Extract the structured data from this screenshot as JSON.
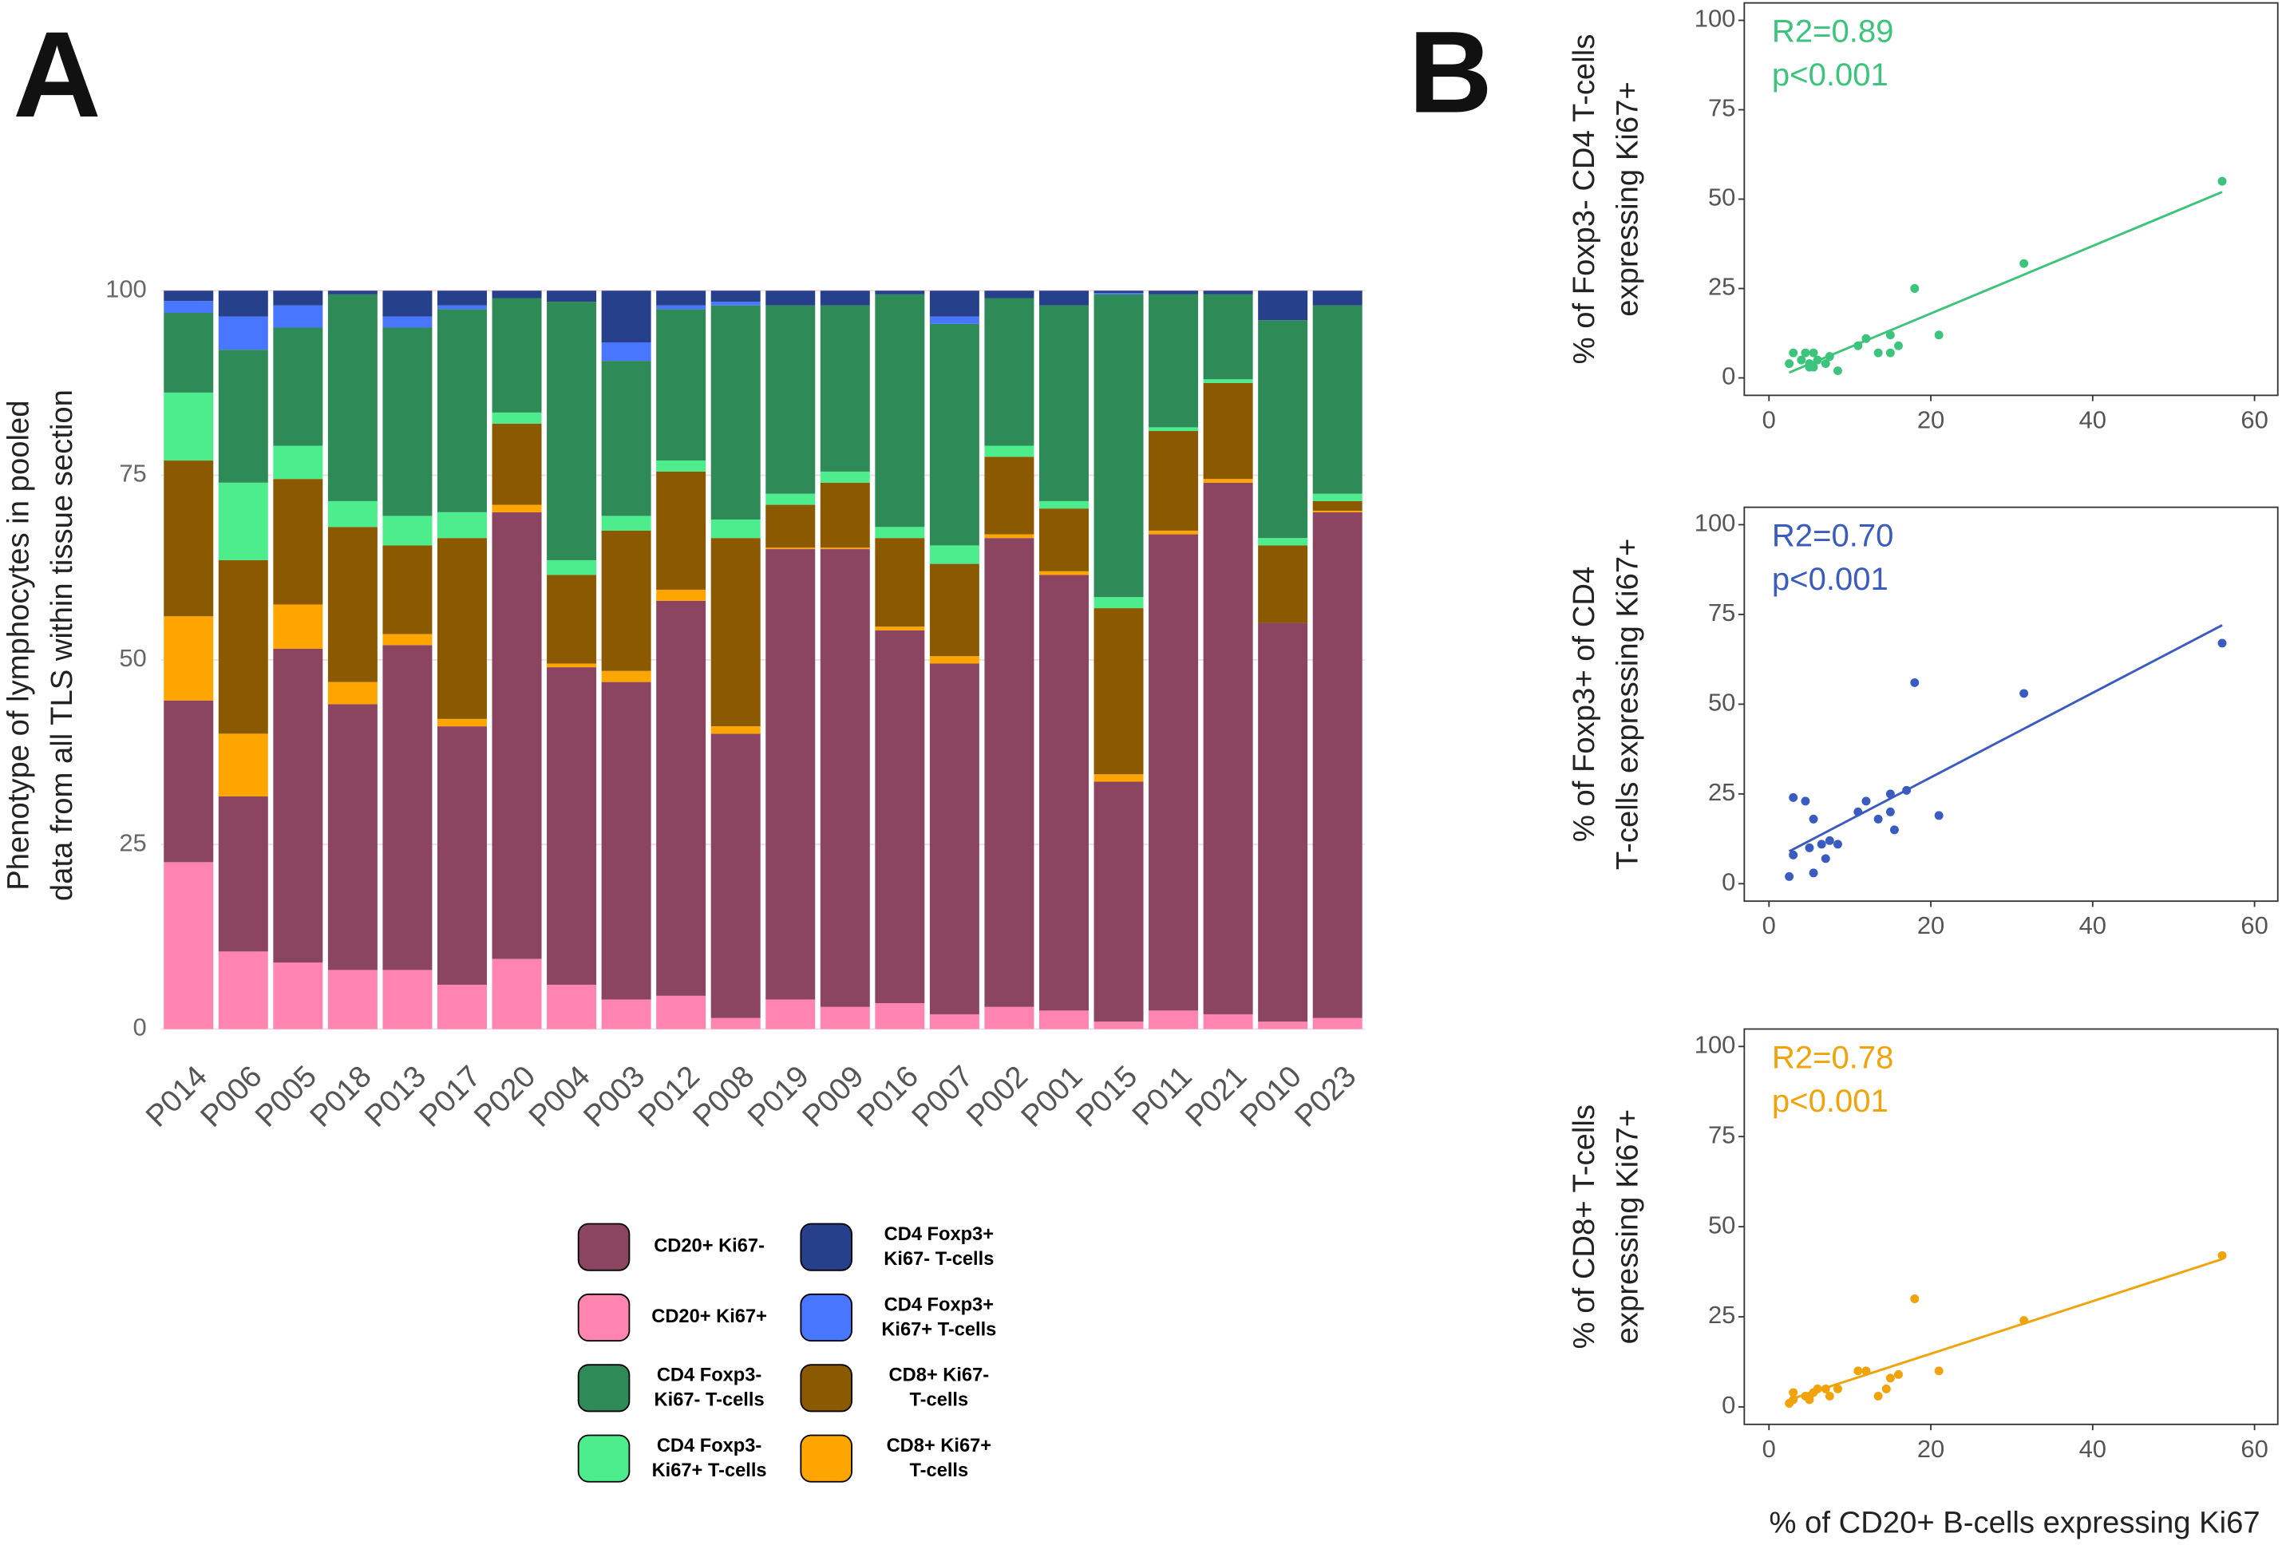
{
  "panel_labels": [
    "A",
    "B"
  ],
  "chart_data": [
    {
      "type": "stacked_bar",
      "ylabel": [
        "Phenotype of lymphocytes in pooled",
        "data from all TLS within tissue section"
      ],
      "categories": [
        "P014",
        "P006",
        "P005",
        "P018",
        "P013",
        "P017",
        "P020",
        "P004",
        "P003",
        "P012",
        "P008",
        "P019",
        "P009",
        "P016",
        "P007",
        "P002",
        "P001",
        "P015",
        "P011",
        "P021",
        "P010",
        "P023"
      ],
      "ylim": [
        0,
        100
      ],
      "yticks": [
        0,
        25,
        50,
        75,
        100
      ],
      "grid": true,
      "series": [
        {
          "name": [
            "CD20+ Ki67+"
          ],
          "color": "#ff85b0",
          "values": [
            22.6,
            10.5,
            9,
            8,
            8,
            6,
            9.5,
            6,
            4,
            4.5,
            1.5,
            4,
            3,
            3.5,
            2,
            3,
            2.5,
            1,
            2.5,
            2,
            1,
            1.5
          ]
        },
        {
          "name": [
            "CD20+ Ki67-"
          ],
          "color": "#8b4560",
          "values": [
            21.9,
            21,
            42.5,
            36,
            44,
            35,
            60.5,
            43,
            43,
            53.5,
            38.5,
            61,
            62,
            50.5,
            47.5,
            63.5,
            59,
            32.5,
            64.5,
            72,
            54,
            68.5
          ]
        },
        {
          "name": [
            "CD8+ Ki67+",
            "T-cells"
          ],
          "color": "#ffa500",
          "values": [
            11.4,
            8.5,
            6,
            3,
            1.5,
            1,
            1,
            0.5,
            1.5,
            1.5,
            1,
            0.2,
            0.2,
            0.5,
            1,
            0.5,
            0.5,
            1,
            0.5,
            0.5,
            0,
            0.2
          ]
        },
        {
          "name": [
            "CD8+ Ki67-",
            "T-cells"
          ],
          "color": "#8b5a00",
          "values": [
            21.1,
            23.5,
            17,
            21,
            12,
            24.5,
            11,
            12,
            19,
            16,
            25.5,
            5.8,
            8.8,
            12,
            12.5,
            10.5,
            8.5,
            22.5,
            13.5,
            13,
            10.5,
            1.3
          ]
        },
        {
          "name": [
            "CD4 Foxp3-",
            "Ki67+ T-cells"
          ],
          "color": "#4ded8d",
          "values": [
            9.2,
            10.5,
            4.5,
            3.5,
            4,
            3.5,
            1.5,
            2,
            2,
            1.5,
            2.5,
            1.5,
            1.5,
            1.5,
            2.5,
            1.5,
            1,
            1.5,
            0.5,
            0.5,
            1,
            1
          ]
        },
        {
          "name": [
            "CD4 Foxp3-",
            "Ki67- T-cells"
          ],
          "color": "#2e8b57",
          "values": [
            10.8,
            18,
            16,
            28,
            25.5,
            27.5,
            15.5,
            35,
            21,
            20.5,
            29,
            25.5,
            22.5,
            31.5,
            30,
            20,
            26.5,
            41,
            18,
            11.5,
            29.5,
            25.5
          ]
        },
        {
          "name": [
            "CD4 Foxp3+",
            "Ki67+ T-cells"
          ],
          "color": "#4876ff",
          "values": [
            1.6,
            4.5,
            3,
            0,
            1.5,
            0.5,
            0,
            0,
            2.5,
            0.5,
            0.5,
            0,
            0,
            0,
            1,
            0,
            0,
            0.2,
            0,
            0,
            0,
            0
          ]
        },
        {
          "name": [
            "CD4 Foxp3+",
            "Ki67- T-cells"
          ],
          "color": "#27408b",
          "values": [
            1.4,
            3.5,
            2,
            0.5,
            3.5,
            2,
            1,
            1.5,
            7,
            2,
            1.5,
            2,
            2,
            0.5,
            3.5,
            1,
            2,
            0.3,
            0.5,
            0.5,
            4,
            2
          ]
        }
      ]
    },
    {
      "type": "scatter",
      "ylabel": [
        "% of Foxp3- CD4 T-cells",
        "expressing Ki67+"
      ],
      "annotations": [
        "R2=0.89",
        "p<0.001"
      ],
      "color": "#3cc47c",
      "xlim": [
        0,
        60
      ],
      "xticks": [
        0,
        20,
        40,
        60
      ],
      "ylim": [
        0,
        100
      ],
      "yticks": [
        0,
        25,
        50,
        75,
        100
      ],
      "x": [
        2.5,
        3,
        4,
        4.5,
        5,
        5,
        5.5,
        6,
        7,
        7.5,
        8.5,
        11,
        12,
        13.5,
        15,
        15,
        16,
        18,
        21,
        31.5,
        56,
        5.5
      ],
      "values": [
        4,
        7,
        5,
        7,
        3,
        4,
        3,
        5,
        4,
        6,
        2,
        9,
        11,
        7,
        12,
        7,
        9,
        25,
        12,
        32,
        55,
        7
      ],
      "fit": {
        "x": [
          2.5,
          56
        ],
        "values": [
          1.5,
          52
        ]
      }
    },
    {
      "type": "scatter",
      "ylabel": [
        "% of Foxp3+ of CD4",
        "T-cells expressing Ki67+"
      ],
      "annotations": [
        "R2=0.70",
        "p<0.001"
      ],
      "color": "#3a5bbf",
      "xlim": [
        0,
        60
      ],
      "xticks": [
        0,
        20,
        40,
        60
      ],
      "ylim": [
        0,
        100
      ],
      "yticks": [
        0,
        25,
        50,
        75,
        100
      ],
      "x": [
        2.5,
        3,
        3,
        4.5,
        5,
        5.5,
        5.5,
        6.5,
        7,
        7.5,
        8.5,
        11,
        12,
        13.5,
        15,
        15,
        15.5,
        17,
        18,
        21,
        31.5,
        56
      ],
      "values": [
        2,
        24,
        8,
        23,
        10,
        18,
        3,
        11,
        7,
        12,
        11,
        20,
        23,
        18,
        25,
        20,
        15,
        26,
        56,
        19,
        53,
        67
      ],
      "fit": {
        "x": [
          2.5,
          56
        ],
        "values": [
          9,
          72
        ]
      }
    },
    {
      "type": "scatter",
      "ylabel": [
        "% of CD8+ T-cells",
        "expressing Ki67+"
      ],
      "xlabel": "% of CD20+ B-cells expressing Ki67",
      "annotations": [
        "R2=0.78",
        "p<0.001"
      ],
      "color": "#f0a30a",
      "xlim": [
        0,
        60
      ],
      "xticks": [
        0,
        20,
        40,
        60
      ],
      "ylim": [
        0,
        100
      ],
      "yticks": [
        0,
        25,
        50,
        75,
        100
      ],
      "x": [
        2.5,
        3,
        3,
        4.5,
        5,
        5.5,
        6,
        7,
        7.5,
        8.5,
        11,
        12,
        13.5,
        14.5,
        15,
        16,
        18,
        21,
        31.5,
        56,
        5
      ],
      "values": [
        1,
        4,
        2,
        3,
        3,
        4,
        5,
        5,
        3,
        5,
        10,
        10,
        3,
        5,
        8,
        9,
        30,
        10,
        24,
        42,
        2
      ],
      "fit": {
        "x": [
          2.5,
          56
        ],
        "values": [
          2,
          41
        ]
      }
    }
  ]
}
